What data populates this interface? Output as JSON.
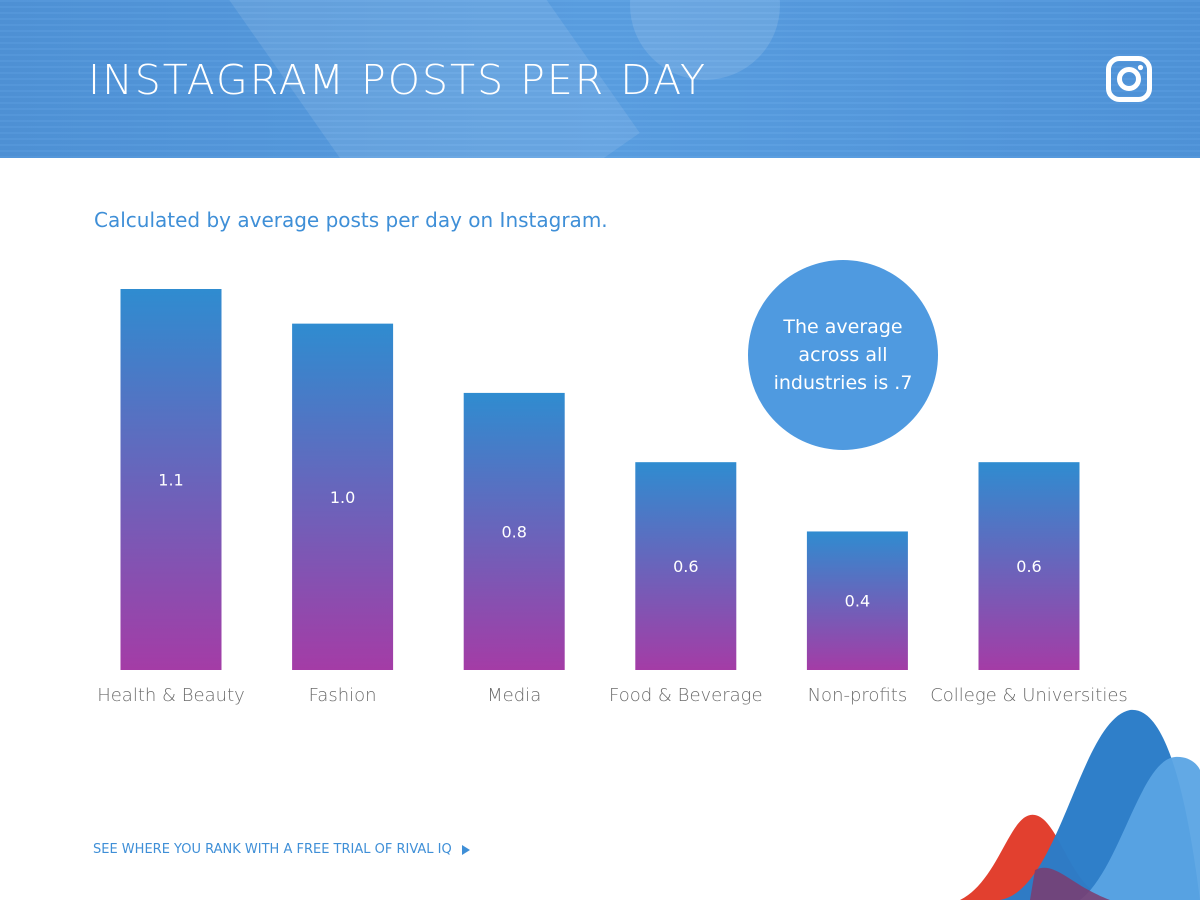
{
  "header": {
    "title": "INSTAGRAM POSTS PER DAY",
    "icon": "instagram-icon"
  },
  "subtitle": "Calculated by average posts per day on Instagram.",
  "callout": {
    "text": "The average across all industries is .7",
    "color": "#4f9ae0"
  },
  "footer": {
    "cta_label": "SEE WHERE YOU RANK WITH A FREE TRIAL OF RIVAL IQ",
    "icon": "play-triangle-icon"
  },
  "colors": {
    "accent": "#3f8fd7",
    "bar_top": "#2f8cd0",
    "bar_bottom": "#a43ca6",
    "axis_label": "#6b6b6b"
  },
  "chart_data": {
    "type": "bar",
    "categories": [
      "Health & Beauty",
      "Fashion",
      "Media",
      "Food & Beverage",
      "Non-profits",
      "College & Universities"
    ],
    "values": [
      1.1,
      1.0,
      0.8,
      0.6,
      0.4,
      0.6
    ],
    "data_labels": [
      "1.1",
      "1.0",
      "0.8",
      "0.6",
      "0.4",
      "0.6"
    ],
    "title": "",
    "xlabel": "",
    "ylabel": "",
    "ylim": [
      0,
      1.1
    ],
    "grid": false,
    "legend": "none"
  }
}
